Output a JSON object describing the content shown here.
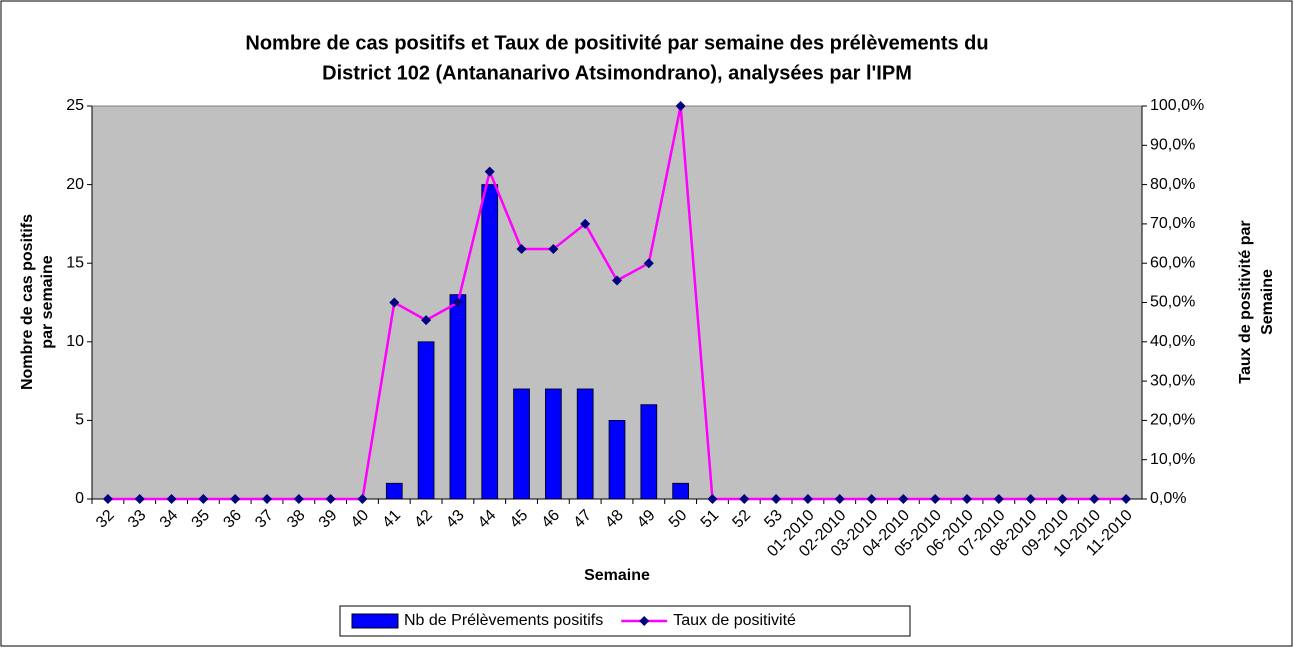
{
  "chart_data": {
    "type": "bar_line",
    "title": [
      "Nombre de cas positifs et Taux de positivité par semaine des prélèvements du",
      "District 102 (Antananarivo Atsimondrano), analysées par l'IPM"
    ],
    "x_label": "Semaine",
    "y_label": [
      "Nombre de cas positifs",
      "par semaine"
    ],
    "y2_label": [
      "Taux de positivité par",
      "Semaine"
    ],
    "categories": [
      "32",
      "33",
      "34",
      "35",
      "36",
      "37",
      "38",
      "39",
      "40",
      "41",
      "42",
      "43",
      "44",
      "45",
      "46",
      "47",
      "48",
      "49",
      "50",
      "51",
      "52",
      "53",
      "01-2010",
      "02-2010",
      "03-2010",
      "04-2010",
      "05-2010",
      "06-2010",
      "07-2010",
      "08-2010",
      "09-2010",
      "10-2010",
      "11-2010"
    ],
    "series": [
      {
        "name": "Nb de Prélèvements positifs",
        "type": "bar",
        "color": "#0000ff",
        "values": [
          0,
          0,
          0,
          0,
          0,
          0,
          0,
          0,
          0,
          1,
          10,
          13,
          20,
          7,
          7,
          7,
          5,
          6,
          1,
          0,
          0,
          0,
          0,
          0,
          0,
          0,
          0,
          0,
          0,
          0,
          0,
          0,
          0
        ]
      },
      {
        "name": "Taux de positivité",
        "type": "line",
        "axis": "y2",
        "color": "#ff00ff",
        "marker_color": "#000080",
        "values": [
          0,
          0,
          0,
          0,
          0,
          0,
          0,
          0,
          0,
          50,
          45.5,
          50,
          83.3,
          63.6,
          63.6,
          70,
          55.6,
          60,
          100,
          0,
          0,
          0,
          0,
          0,
          0,
          0,
          0,
          0,
          0,
          0,
          0,
          0,
          0
        ]
      }
    ],
    "ylim": [
      0,
      25
    ],
    "yticks": [
      0,
      5,
      10,
      15,
      20,
      25
    ],
    "y2lim": [
      0,
      100
    ],
    "y2ticks": [
      {
        "value": 0,
        "label": "0,0%"
      },
      {
        "value": 10,
        "label": "10,0%"
      },
      {
        "value": 20,
        "label": "20,0%"
      },
      {
        "value": 30,
        "label": "30,0%"
      },
      {
        "value": 40,
        "label": "40,0%"
      },
      {
        "value": 50,
        "label": "50,0%"
      },
      {
        "value": 60,
        "label": "60,0%"
      },
      {
        "value": 70,
        "label": "70,0%"
      },
      {
        "value": 80,
        "label": "80,0%"
      },
      {
        "value": 90,
        "label": "90,0%"
      },
      {
        "value": 100,
        "label": "100,0%"
      }
    ],
    "plot_background": "#c0c0c0",
    "legend": "bottom"
  }
}
